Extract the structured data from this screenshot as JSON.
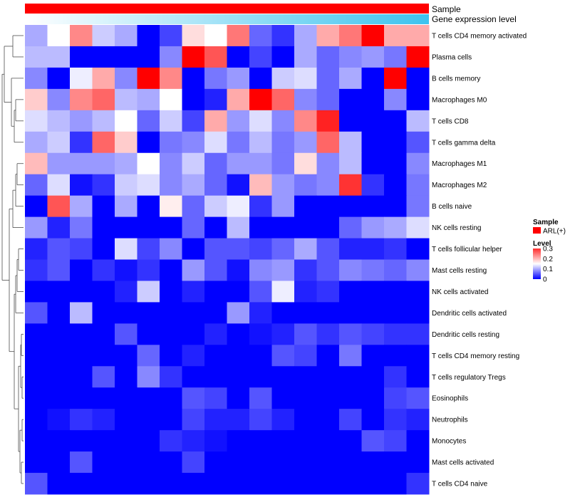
{
  "chart_data": {
    "type": "heatmap",
    "title": "",
    "xlabel": "",
    "ylabel": "",
    "columns_count": 18,
    "rows": [
      "T cells CD4 memory activated",
      "Plasma cells",
      "B cells memory",
      "Macrophages M0",
      "T cells CD8",
      "T cells gamma delta",
      "Macrophages M1",
      "Macrophages M2",
      "B cells naive",
      "NK cells resting",
      "T cells follicular helper",
      "Mast cells resting",
      "NK cells activated",
      "Dendritic cells activated",
      "Dendritic cells resting",
      "T cells CD4 memory resting",
      "T cells regulatory  Tregs",
      "Eosinophils",
      "Neutrophils",
      "Monocytes",
      "Mast cells activated",
      "T cells CD4 naive"
    ],
    "values": [
      [
        0.1,
        0.15,
        0.22,
        0.12,
        0.1,
        0.0,
        0.04,
        0.17,
        0.15,
        0.23,
        0.06,
        0.03,
        0.1,
        0.2,
        0.23,
        0.3,
        0.2,
        0.2
      ],
      [
        0.11,
        0.11,
        0.0,
        0.0,
        0.0,
        0.0,
        0.08,
        0.3,
        0.25,
        0.0,
        0.04,
        0.0,
        0.1,
        0.06,
        0.08,
        0.09,
        0.07,
        0.3
      ],
      [
        0.08,
        0.0,
        0.14,
        0.2,
        0.08,
        0.3,
        0.22,
        0.0,
        0.07,
        0.09,
        0.0,
        0.12,
        0.13,
        0.06,
        0.1,
        0.0,
        0.3,
        0.0
      ],
      [
        0.18,
        0.08,
        0.22,
        0.24,
        0.11,
        0.1,
        0.15,
        0.0,
        0.02,
        0.2,
        0.3,
        0.24,
        0.08,
        0.06,
        0.0,
        0.0,
        0.08,
        0.0
      ],
      [
        0.13,
        0.11,
        0.09,
        0.11,
        0.15,
        0.06,
        0.12,
        0.04,
        0.2,
        0.09,
        0.13,
        0.08,
        0.22,
        0.28,
        0.0,
        0.0,
        0.0,
        0.11
      ],
      [
        0.1,
        0.12,
        0.03,
        0.24,
        0.18,
        0.0,
        0.07,
        0.08,
        0.13,
        0.07,
        0.11,
        0.07,
        0.09,
        0.24,
        0.11,
        0.0,
        0.0,
        0.05
      ],
      [
        0.19,
        0.09,
        0.09,
        0.09,
        0.1,
        0.15,
        0.08,
        0.12,
        0.06,
        0.09,
        0.09,
        0.07,
        0.17,
        0.08,
        0.11,
        0.0,
        0.0,
        0.08
      ],
      [
        0.06,
        0.13,
        0.01,
        0.03,
        0.12,
        0.13,
        0.08,
        0.1,
        0.06,
        0.01,
        0.19,
        0.09,
        0.07,
        0.08,
        0.27,
        0.03,
        0.0,
        0.07
      ],
      [
        0.0,
        0.25,
        0.1,
        0.0,
        0.1,
        0.0,
        0.16,
        0.06,
        0.12,
        0.14,
        0.03,
        0.09,
        0.0,
        0.0,
        0.0,
        0.0,
        0.0,
        0.07
      ],
      [
        0.09,
        0.02,
        0.07,
        0.0,
        0.0,
        0.0,
        0.0,
        0.06,
        0.0,
        0.11,
        0.0,
        0.0,
        0.0,
        0.0,
        0.06,
        0.09,
        0.1,
        0.13
      ],
      [
        0.02,
        0.05,
        0.04,
        0.0,
        0.13,
        0.04,
        0.08,
        0.0,
        0.05,
        0.05,
        0.04,
        0.06,
        0.1,
        0.05,
        0.02,
        0.02,
        0.03,
        0.0
      ],
      [
        0.03,
        0.05,
        0.0,
        0.03,
        0.01,
        0.03,
        0.0,
        0.09,
        0.05,
        0.01,
        0.08,
        0.09,
        0.03,
        0.05,
        0.08,
        0.07,
        0.06,
        0.08
      ],
      [
        0.0,
        0.0,
        0.0,
        0.0,
        0.02,
        0.12,
        0.0,
        0.02,
        0.0,
        0.0,
        0.05,
        0.14,
        0.02,
        0.03,
        0.0,
        0.0,
        0.0,
        0.0
      ],
      [
        0.05,
        0.0,
        0.11,
        0.0,
        0.0,
        0.0,
        0.0,
        0.0,
        0.0,
        0.09,
        0.02,
        0.0,
        0.0,
        0.0,
        0.0,
        0.0,
        0.0,
        0.0
      ],
      [
        0.0,
        0.0,
        0.0,
        0.0,
        0.05,
        0.0,
        0.0,
        0.0,
        0.02,
        0.0,
        0.01,
        0.02,
        0.05,
        0.03,
        0.05,
        0.04,
        0.03,
        0.03
      ],
      [
        0.0,
        0.0,
        0.0,
        0.0,
        0.0,
        0.06,
        0.0,
        0.02,
        0.0,
        0.0,
        0.0,
        0.05,
        0.04,
        0.0,
        0.07,
        0.0,
        0.0,
        0.0
      ],
      [
        0.0,
        0.0,
        0.0,
        0.05,
        0.0,
        0.08,
        0.03,
        0.0,
        0.0,
        0.0,
        0.0,
        0.0,
        0.0,
        0.0,
        0.0,
        0.0,
        0.03,
        0.0
      ],
      [
        0.0,
        0.0,
        0.0,
        0.0,
        0.0,
        0.0,
        0.0,
        0.05,
        0.04,
        0.0,
        0.05,
        0.0,
        0.0,
        0.0,
        0.0,
        0.0,
        0.04,
        0.05
      ],
      [
        0.0,
        0.01,
        0.03,
        0.02,
        0.0,
        0.0,
        0.0,
        0.04,
        0.02,
        0.02,
        0.04,
        0.02,
        0.0,
        0.0,
        0.04,
        0.0,
        0.03,
        0.02
      ],
      [
        0.0,
        0.0,
        0.0,
        0.0,
        0.0,
        0.0,
        0.03,
        0.02,
        0.01,
        0.0,
        0.0,
        0.0,
        0.0,
        0.0,
        0.0,
        0.05,
        0.04,
        0.0
      ],
      [
        0.0,
        0.0,
        0.05,
        0.0,
        0.0,
        0.0,
        0.0,
        0.04,
        0.0,
        0.0,
        0.0,
        0.0,
        0.0,
        0.0,
        0.0,
        0.0,
        0.0,
        0.0
      ],
      [
        0.05,
        0.0,
        0.0,
        0.0,
        0.0,
        0.0,
        0.0,
        0.0,
        0.0,
        0.0,
        0.0,
        0.0,
        0.0,
        0.0,
        0.0,
        0.0,
        0.0,
        0.03
      ]
    ],
    "color_scale": {
      "min": 0,
      "mid": 0.15,
      "max": 0.3,
      "low": "#0000ff",
      "midColor": "#ffffff",
      "high": "#ff0000"
    },
    "annotation_tracks": [
      {
        "label": "Sample",
        "type": "solid",
        "color": "#ff0000"
      },
      {
        "label": "Gene expression level",
        "type": "gradient",
        "start": "#ffffff",
        "end": "#3dc3ee"
      }
    ],
    "legends": {
      "sample_title": "Sample",
      "sample_entries": [
        {
          "label": "ARL(+)",
          "color": "#ff0000"
        }
      ],
      "level_title": "Level",
      "level_ticks": [
        "0.3",
        "0.2",
        "0.1",
        "0"
      ],
      "level_tick_values": [
        0.3,
        0.2,
        0.1,
        0
      ]
    },
    "row_dendrogram": true
  }
}
